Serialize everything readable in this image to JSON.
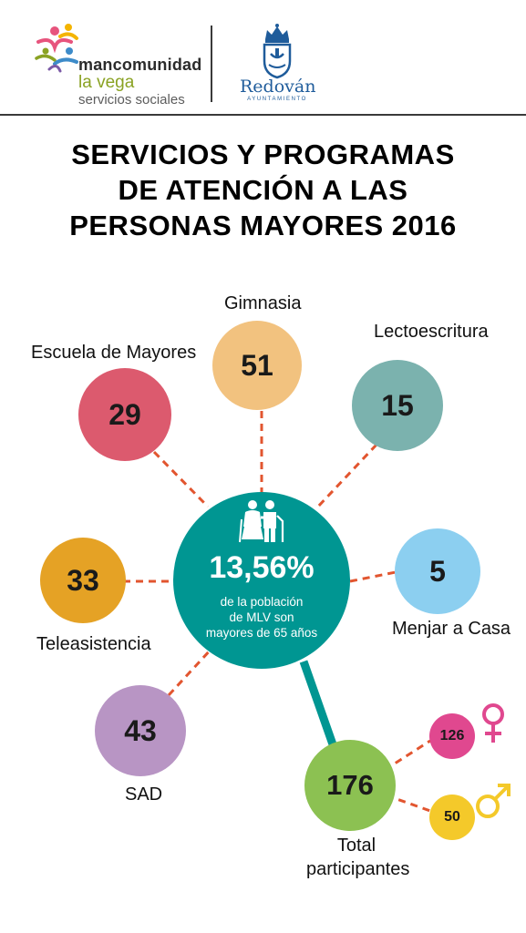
{
  "header": {
    "mancomunidad_line1": "mancomunidad",
    "mancomunidad_line2": "la vega",
    "mancomunidad_line3": "servicios sociales",
    "redovan_name": "Redován",
    "redovan_sub": "AYUNTAMIENTO"
  },
  "title": {
    "line1": "SERVICIOS Y PROGRAMAS",
    "line2": "DE ATENCIÓN A LAS",
    "line3": "PERSONAS MAYORES 2016"
  },
  "center": {
    "icon": "elderly-couple-icon",
    "percent": "13,56%",
    "desc1": "de la población",
    "desc2": "de MLV son",
    "desc3": "mayores de 65 años",
    "color": "#009692"
  },
  "services": [
    {
      "name": "Gimnasia",
      "value": "51",
      "color": "#f2c27f"
    },
    {
      "name": "Lectoescritura",
      "value": "15",
      "color": "#7bb2ae"
    },
    {
      "name": "Escuela de Mayores",
      "value": "29",
      "color": "#dc5a6e"
    },
    {
      "name": "Teleasistencia",
      "value": "33",
      "color": "#e5a225"
    },
    {
      "name": "Menjar a Casa",
      "value": "5",
      "color": "#8ccff0"
    },
    {
      "name": "SAD",
      "value": "43",
      "color": "#b895c4"
    }
  ],
  "total": {
    "value": "176",
    "label1": "Total",
    "label2": "participantes",
    "color": "#8cc152"
  },
  "gender": {
    "female_value": "126",
    "female_icon": "female-symbol-icon",
    "female_color": "#e0488f",
    "male_value": "50",
    "male_icon": "male-symbol-icon",
    "male_color": "#f4c92a"
  },
  "connector_color": "#e2552f"
}
